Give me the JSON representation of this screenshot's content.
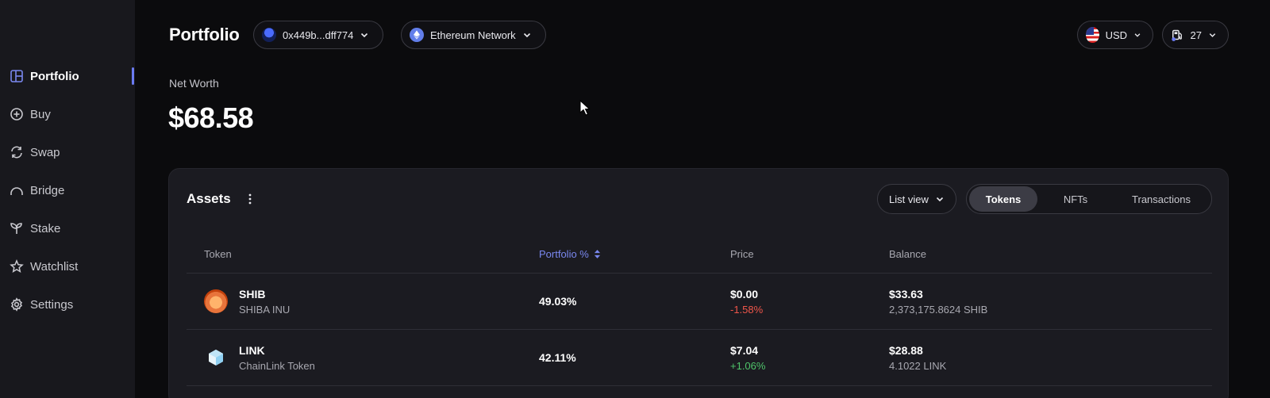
{
  "sidebar": {
    "items": [
      {
        "label": "Portfolio",
        "icon": "portfolio-icon"
      },
      {
        "label": "Buy",
        "icon": "plus-circle-icon"
      },
      {
        "label": "Swap",
        "icon": "swap-icon"
      },
      {
        "label": "Bridge",
        "icon": "bridge-icon"
      },
      {
        "label": "Stake",
        "icon": "sprout-icon"
      },
      {
        "label": "Watchlist",
        "icon": "star-icon"
      },
      {
        "label": "Settings",
        "icon": "gear-icon"
      }
    ],
    "active_index": 0
  },
  "header": {
    "title": "Portfolio",
    "wallet": "0x449b...dff774",
    "network": "Ethereum Network",
    "currency": "USD",
    "gas": "27"
  },
  "networth": {
    "label": "Net Worth",
    "value": "$68.58"
  },
  "assets": {
    "title": "Assets",
    "view_select": "List view",
    "tabs": [
      "Tokens",
      "NFTs",
      "Transactions"
    ],
    "active_tab": "Tokens",
    "columns": {
      "token": "Token",
      "portfolio": "Portfolio %",
      "price": "Price",
      "balance": "Balance"
    },
    "rows": [
      {
        "symbol": "SHIB",
        "name": "SHIBA INU",
        "portfolio": "49.03%",
        "price": "$0.00",
        "change": "-1.58%",
        "balance": "$33.63",
        "quantity": "2,373,175.8624 SHIB"
      },
      {
        "symbol": "LINK",
        "name": "ChainLink Token",
        "portfolio": "42.11%",
        "price": "$7.04",
        "change": "+1.06%",
        "balance": "$28.88",
        "quantity": "4.1022 LINK"
      }
    ]
  },
  "colors": {
    "accent": "#6b7bf2",
    "negative": "#f0564a",
    "positive": "#4fc46a"
  }
}
